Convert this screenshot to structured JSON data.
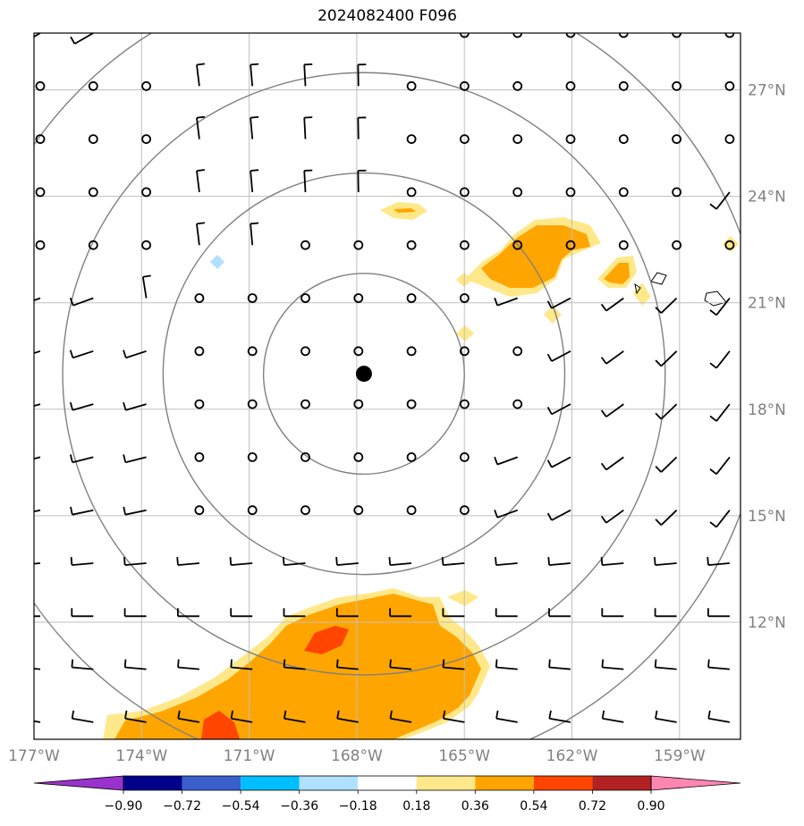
{
  "title": "2024082400 F096",
  "map": {
    "lon_range": [
      -177,
      -157.3
    ],
    "lat_range": [
      8.7,
      28.6
    ],
    "center": {
      "lon": -167.8,
      "lat": 19.0
    },
    "range_ring_radii_deg": [
      2.8,
      5.6,
      8.4,
      11.2
    ],
    "lon_ticks": [
      "177°W",
      "174°W",
      "171°W",
      "168°W",
      "165°W",
      "162°W",
      "159°W"
    ],
    "lon_tick_values": [
      -177,
      -174,
      -171,
      -168,
      -165,
      -162,
      -159
    ],
    "lat_ticks": [
      "27°N",
      "24°N",
      "21°N",
      "18°N",
      "15°N",
      "12°N"
    ],
    "lat_tick_values": [
      27,
      24,
      21,
      18,
      15,
      12
    ],
    "grid_color": "#bfbfbf",
    "ring_color": "#808080",
    "coast_color": "#000000"
  },
  "colorbar": {
    "labels": [
      "−0.90",
      "−0.72",
      "−0.54",
      "−0.36",
      "−0.18",
      "0.18",
      "0.36",
      "0.54",
      "0.72",
      "0.90"
    ],
    "colors": [
      "#9932cc",
      "#00008b",
      "#3a5fcd",
      "#00bfff",
      "#b0e0ff",
      "#ffffff",
      "#ffe88a",
      "#ffa500",
      "#ff4500",
      "#b22222",
      "#ff85b3"
    ]
  },
  "shading_colors": {
    "light": "#ffe88a",
    "medium": "#ffa500",
    "strong": "#ff4500",
    "negative": "#b0e0ff"
  }
}
